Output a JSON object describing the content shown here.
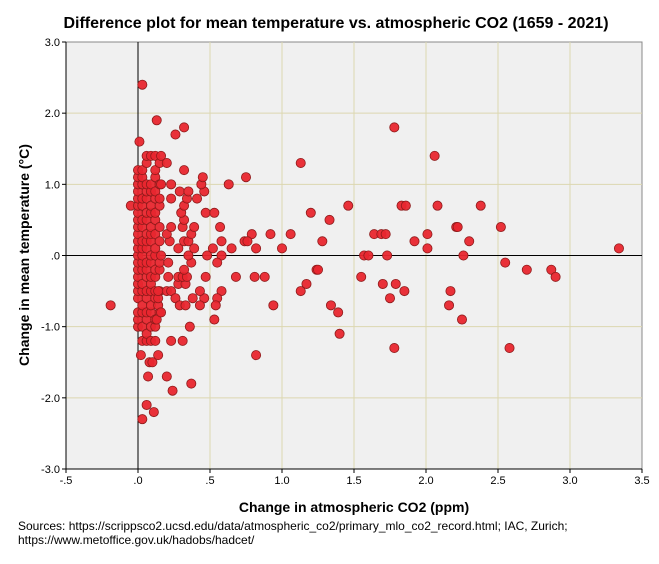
{
  "chart_data": {
    "type": "scatter",
    "title": "Difference plot for mean temperature vs. atmospheric CO2 (1659 - 2021)",
    "xlabel": "Change in atmospheric CO2 (ppm)",
    "ylabel": "Change in mean temperature (°C)",
    "xlim": [
      -0.5,
      3.5
    ],
    "ylim": [
      -3.0,
      3.0
    ],
    "x_ticks": [
      -0.5,
      0,
      0.5,
      1.0,
      1.5,
      2.0,
      2.5,
      3.0,
      3.5
    ],
    "x_tick_labels": [
      "-.5",
      ".0",
      ".5",
      "1.0",
      "1.5",
      "2.0",
      "2.5",
      "3.0",
      "3.5"
    ],
    "y_ticks": [
      3.0,
      2.0,
      1.0,
      0,
      -1.0,
      -2.0,
      -3.0
    ],
    "y_tick_labels": [
      "3.0",
      "2.0",
      "1.0",
      ".0",
      "-1.0",
      "-2.0",
      "-3.0"
    ],
    "grid": true,
    "colors": {
      "point_fill": "#e8262e",
      "point_stroke": "#8e1b1b",
      "plot_bg": "#f0f0f0",
      "grid": "#dcd7b0"
    },
    "points": [
      [
        -0.19,
        -0.7
      ],
      [
        -0.05,
        0.7
      ],
      [
        0,
        -1.0
      ],
      [
        0,
        -0.9
      ],
      [
        0,
        -0.8
      ],
      [
        0,
        -0.6
      ],
      [
        0,
        -0.5
      ],
      [
        0,
        -0.4
      ],
      [
        0,
        -0.3
      ],
      [
        0,
        -0.2
      ],
      [
        0,
        -0.1
      ],
      [
        0,
        0
      ],
      [
        0,
        0.1
      ],
      [
        0,
        0.2
      ],
      [
        0,
        0.3
      ],
      [
        0,
        0.4
      ],
      [
        0,
        0.5
      ],
      [
        0,
        0.6
      ],
      [
        0,
        0.7
      ],
      [
        0,
        0.8
      ],
      [
        0,
        0.9
      ],
      [
        0,
        1.0
      ],
      [
        0,
        1.1
      ],
      [
        0,
        1.2
      ],
      [
        0.01,
        1.6
      ],
      [
        0.03,
        -1.2
      ],
      [
        0.03,
        -1.0
      ],
      [
        0.03,
        -0.8
      ],
      [
        0.03,
        -0.7
      ],
      [
        0.03,
        -0.5
      ],
      [
        0.03,
        -0.4
      ],
      [
        0.03,
        -0.2
      ],
      [
        0.03,
        -0.1
      ],
      [
        0.03,
        0
      ],
      [
        0.03,
        0.1
      ],
      [
        0.03,
        0.2
      ],
      [
        0.03,
        0.4
      ],
      [
        0.03,
        0.5
      ],
      [
        0.03,
        0.7
      ],
      [
        0.03,
        0.8
      ],
      [
        0.03,
        1.0
      ],
      [
        0.03,
        1.1
      ],
      [
        0.03,
        1.2
      ],
      [
        0.03,
        2.4
      ],
      [
        0.02,
        -1.4
      ],
      [
        0.03,
        -2.3
      ],
      [
        0.06,
        -1.2
      ],
      [
        0.06,
        -1.1
      ],
      [
        0.06,
        -0.9
      ],
      [
        0.06,
        -0.8
      ],
      [
        0.06,
        -0.6
      ],
      [
        0.06,
        -0.5
      ],
      [
        0.06,
        -0.3
      ],
      [
        0.06,
        -0.2
      ],
      [
        0.06,
        -0.1
      ],
      [
        0.06,
        0.1
      ],
      [
        0.06,
        0.2
      ],
      [
        0.06,
        0.3
      ],
      [
        0.06,
        0.5
      ],
      [
        0.06,
        0.6
      ],
      [
        0.06,
        0.8
      ],
      [
        0.06,
        0.9
      ],
      [
        0.06,
        1.0
      ],
      [
        0.06,
        1.3
      ],
      [
        0.06,
        1.4
      ],
      [
        0.06,
        -2.1
      ],
      [
        0.07,
        -1.7
      ],
      [
        0.09,
        -1.2
      ],
      [
        0.09,
        -1.0
      ],
      [
        0.09,
        -0.8
      ],
      [
        0.09,
        -0.7
      ],
      [
        0.09,
        -0.5
      ],
      [
        0.09,
        -0.4
      ],
      [
        0.09,
        -0.3
      ],
      [
        0.09,
        -0.1
      ],
      [
        0.09,
        0
      ],
      [
        0.09,
        0.2
      ],
      [
        0.09,
        0.3
      ],
      [
        0.09,
        0.4
      ],
      [
        0.09,
        0.6
      ],
      [
        0.09,
        0.7
      ],
      [
        0.09,
        0.9
      ],
      [
        0.09,
        1.0
      ],
      [
        0.09,
        1.4
      ],
      [
        0.08,
        -1.5
      ],
      [
        0.1,
        -1.5
      ],
      [
        0.11,
        -2.2
      ],
      [
        0.12,
        -1.2
      ],
      [
        0.12,
        -1.0
      ],
      [
        0.12,
        -0.9
      ],
      [
        0.12,
        -0.6
      ],
      [
        0.12,
        -0.5
      ],
      [
        0.12,
        -0.3
      ],
      [
        0.12,
        -0.2
      ],
      [
        0.12,
        0
      ],
      [
        0.12,
        0.1
      ],
      [
        0.12,
        0.3
      ],
      [
        0.12,
        0.5
      ],
      [
        0.12,
        0.6
      ],
      [
        0.12,
        0.8
      ],
      [
        0.12,
        0.9
      ],
      [
        0.12,
        1.1
      ],
      [
        0.12,
        1.2
      ],
      [
        0.12,
        1.4
      ],
      [
        0.13,
        1.9
      ],
      [
        0.14,
        -1.4
      ],
      [
        0.15,
        -0.8
      ],
      [
        0.15,
        -0.5
      ],
      [
        0.15,
        -0.2
      ],
      [
        0.15,
        -0.1
      ],
      [
        0.15,
        0.2
      ],
      [
        0.15,
        0.4
      ],
      [
        0.15,
        0.7
      ],
      [
        0.15,
        0.8
      ],
      [
        0.15,
        1.0
      ],
      [
        0.15,
        1.3
      ],
      [
        0.16,
        1.4
      ],
      [
        0.16,
        0
      ],
      [
        0.13,
        -0.9
      ],
      [
        0.14,
        -0.7
      ],
      [
        0.16,
        -0.8
      ],
      [
        0.14,
        -0.6
      ],
      [
        0.14,
        -0.5
      ],
      [
        0.2,
        -0.5
      ],
      [
        0.23,
        -0.5
      ],
      [
        0.26,
        -0.6
      ],
      [
        0.29,
        -0.7
      ],
      [
        0.28,
        -0.4
      ],
      [
        0.33,
        -0.4
      ],
      [
        0.21,
        -0.3
      ],
      [
        0.28,
        -0.3
      ],
      [
        0.31,
        -0.3
      ],
      [
        0.34,
        -0.3
      ],
      [
        0.32,
        -0.2
      ],
      [
        0.21,
        -0.1
      ],
      [
        0.37,
        -0.1
      ],
      [
        0.35,
        0
      ],
      [
        0.28,
        0.1
      ],
      [
        0.22,
        0.2
      ],
      [
        0.2,
        0.3
      ],
      [
        0.39,
        0.1
      ],
      [
        0.32,
        0.2
      ],
      [
        0.35,
        0.2
      ],
      [
        0.37,
        0.3
      ],
      [
        0.23,
        0.4
      ],
      [
        0.31,
        0.4
      ],
      [
        0.39,
        0.4
      ],
      [
        0.57,
        0.4
      ],
      [
        0.32,
        0.5
      ],
      [
        0.3,
        0.6
      ],
      [
        0.47,
        0.6
      ],
      [
        0.53,
        0.6
      ],
      [
        0.32,
        0.7
      ],
      [
        0.23,
        0.8
      ],
      [
        0.34,
        0.8
      ],
      [
        0.41,
        0.8
      ],
      [
        0.29,
        0.9
      ],
      [
        0.35,
        0.9
      ],
      [
        0.46,
        0.9
      ],
      [
        0.16,
        1.0
      ],
      [
        0.23,
        1.0
      ],
      [
        0.44,
        1.0
      ],
      [
        0.45,
        1.1
      ],
      [
        0.32,
        1.2
      ],
      [
        0.2,
        1.3
      ],
      [
        0.26,
        1.7
      ],
      [
        0.32,
        1.8
      ],
      [
        0.58,
        0.2
      ],
      [
        0.52,
        0.1
      ],
      [
        0.65,
        0.1
      ],
      [
        0.48,
        0
      ],
      [
        0.58,
        0
      ],
      [
        0.55,
        -0.1
      ],
      [
        0.47,
        -0.3
      ],
      [
        0.58,
        -0.5
      ],
      [
        0.55,
        -0.6
      ],
      [
        0.54,
        -0.7
      ],
      [
        0.53,
        -0.9
      ],
      [
        0.46,
        -0.6
      ],
      [
        0.43,
        -0.7
      ],
      [
        0.43,
        -0.5
      ],
      [
        0.38,
        -0.6
      ],
      [
        0.33,
        -0.7
      ],
      [
        0.36,
        -1.0
      ],
      [
        0.31,
        -1.2
      ],
      [
        0.23,
        -1.2
      ],
      [
        0.37,
        -1.8
      ],
      [
        0.24,
        -1.9
      ],
      [
        0.2,
        -1.7
      ],
      [
        0.63,
        1.0
      ],
      [
        0.75,
        1.1
      ],
      [
        0.79,
        0.3
      ],
      [
        0.92,
        0.3
      ],
      [
        0.74,
        0.2
      ],
      [
        0.76,
        0.2
      ],
      [
        0.82,
        0.1
      ],
      [
        0.68,
        -0.3
      ],
      [
        0.81,
        -0.3
      ],
      [
        0.88,
        -0.3
      ],
      [
        0.94,
        -0.7
      ],
      [
        0.82,
        -1.4
      ],
      [
        1.0,
        0.1
      ],
      [
        1.06,
        0.3
      ],
      [
        1.13,
        1.3
      ],
      [
        1.2,
        0.6
      ],
      [
        1.28,
        0.2
      ],
      [
        1.33,
        0.5
      ],
      [
        1.46,
        0.7
      ],
      [
        1.24,
        -0.2
      ],
      [
        1.25,
        -0.2
      ],
      [
        1.17,
        -0.4
      ],
      [
        1.13,
        -0.5
      ],
      [
        1.34,
        -0.7
      ],
      [
        1.39,
        -0.8
      ],
      [
        1.4,
        -1.1
      ],
      [
        1.55,
        -0.3
      ],
      [
        1.57,
        0
      ],
      [
        1.6,
        0
      ],
      [
        1.64,
        0.3
      ],
      [
        1.69,
        0.3
      ],
      [
        1.72,
        0.3
      ],
      [
        1.73,
        0
      ],
      [
        1.7,
        -0.4
      ],
      [
        1.75,
        -0.6
      ],
      [
        1.78,
        1.8
      ],
      [
        1.79,
        -0.4
      ],
      [
        1.85,
        -0.5
      ],
      [
        1.78,
        -1.3
      ],
      [
        1.83,
        0.7
      ],
      [
        1.86,
        0.7
      ],
      [
        1.92,
        0.2
      ],
      [
        2.01,
        0.3
      ],
      [
        2.01,
        0.1
      ],
      [
        2.06,
        1.4
      ],
      [
        2.08,
        0.7
      ],
      [
        2.16,
        -0.7
      ],
      [
        2.17,
        -0.5
      ],
      [
        2.21,
        0.4
      ],
      [
        2.22,
        0.4
      ],
      [
        2.25,
        -0.9
      ],
      [
        2.26,
        0
      ],
      [
        2.3,
        0.2
      ],
      [
        2.38,
        0.7
      ],
      [
        2.52,
        0.4
      ],
      [
        2.55,
        -0.1
      ],
      [
        2.58,
        -1.3
      ],
      [
        2.7,
        -0.2
      ],
      [
        2.87,
        -0.2
      ],
      [
        2.9,
        -0.3
      ],
      [
        3.34,
        0.1
      ]
    ]
  },
  "footer": {
    "sources_line1": "Sources: https://scrippsco2.ucsd.edu/data/atmospheric_co2/primary_mlo_co2_record.html; IAC, Zurich;",
    "sources_line2": "https://www.metoffice.gov.uk/hadobs/hadcet/"
  }
}
